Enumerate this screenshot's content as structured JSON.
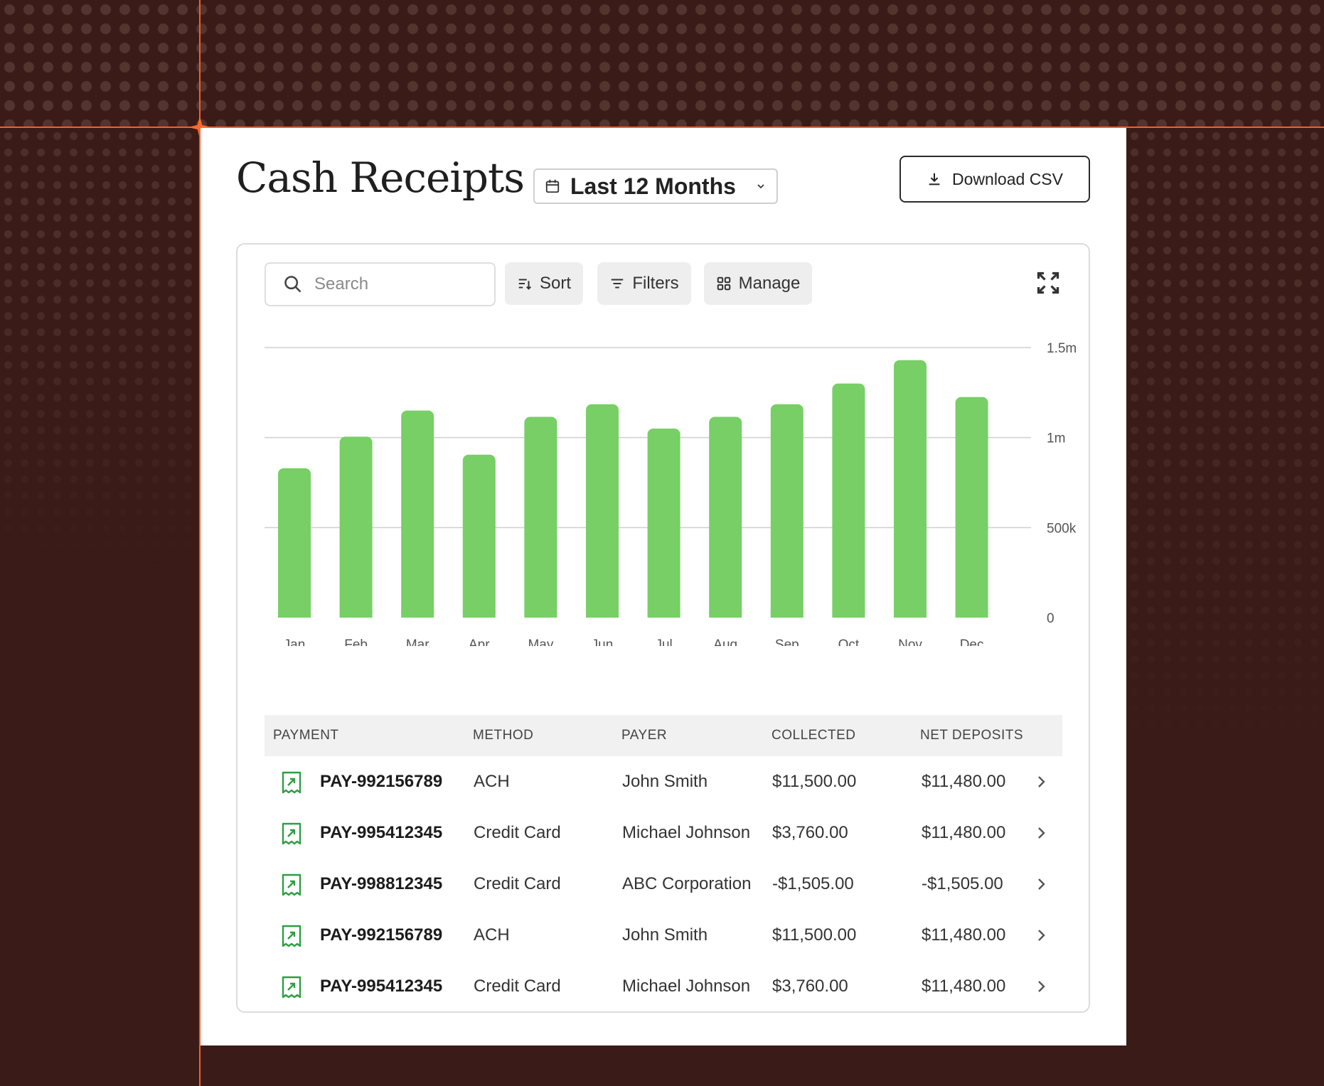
{
  "header": {
    "title": "Cash Receipts",
    "date_range": "Last 12 Months",
    "download_label": "Download CSV"
  },
  "toolbar": {
    "search_placeholder": "Search",
    "sort_label": "Sort",
    "filters_label": "Filters",
    "manage_label": "Manage"
  },
  "colors": {
    "bar": "#77cf66",
    "accent_guide": "#ff5a1f",
    "background": "#3a1b17",
    "receipt_icon": "#2f9e44"
  },
  "chart_data": {
    "type": "bar",
    "categories": [
      "Jan",
      "Feb",
      "Mar",
      "Apr",
      "May",
      "Jun",
      "Jul",
      "Aug",
      "Sep",
      "Oct",
      "Nov",
      "Dec"
    ],
    "values": [
      830000,
      1005000,
      1150000,
      905000,
      1115000,
      1185000,
      1050000,
      1115000,
      1185000,
      1300000,
      1430000,
      1225000
    ],
    "yticks": [
      {
        "value": 1500000,
        "label": "1.5m"
      },
      {
        "value": 1000000,
        "label": "1m"
      },
      {
        "value": 500000,
        "label": "500k"
      },
      {
        "value": 0,
        "label": "0"
      }
    ],
    "ylim": [
      0,
      1500000
    ],
    "axis_side": "right",
    "grid": true,
    "title": "",
    "xlabel": "",
    "ylabel": ""
  },
  "table": {
    "columns": [
      "PAYMENT",
      "METHOD",
      "PAYER",
      "COLLECTED",
      "NET DEPOSITS"
    ],
    "rows": [
      {
        "payment": "PAY-992156789",
        "method": "ACH",
        "payer": "John Smith",
        "collected": "$11,500.00",
        "net": "$11,480.00"
      },
      {
        "payment": "PAY-995412345",
        "method": "Credit Card",
        "payer": "Michael Johnson",
        "collected": "$3,760.00",
        "net": "$11,480.00"
      },
      {
        "payment": "PAY-998812345",
        "method": "Credit Card",
        "payer": "ABC Corporation",
        "collected": "-$1,505.00",
        "net": "-$1,505.00"
      },
      {
        "payment": "PAY-992156789",
        "method": "ACH",
        "payer": "John Smith",
        "collected": "$11,500.00",
        "net": "$11,480.00"
      },
      {
        "payment": "PAY-995412345",
        "method": "Credit Card",
        "payer": "Michael Johnson",
        "collected": "$3,760.00",
        "net": "$11,480.00"
      }
    ]
  }
}
